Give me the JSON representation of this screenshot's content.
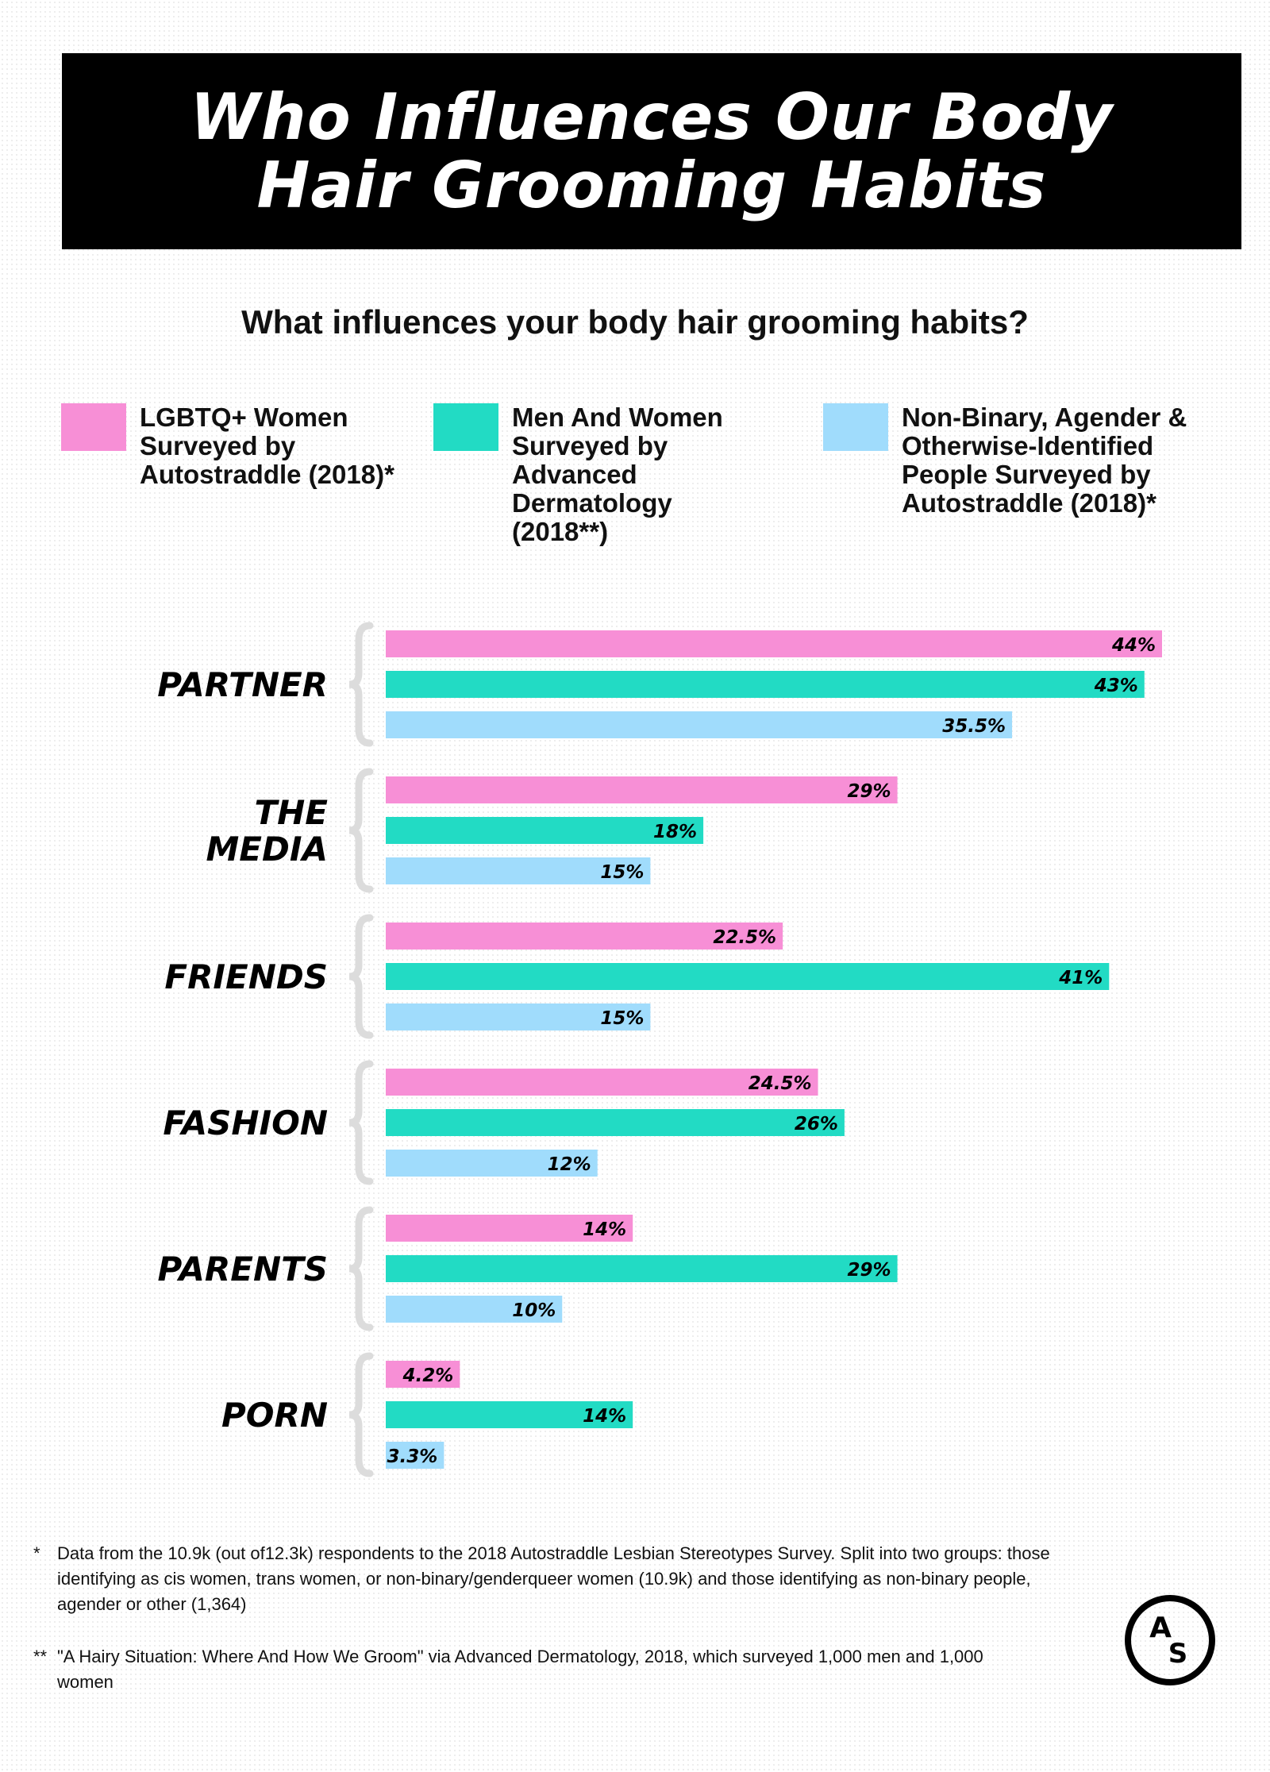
{
  "title": "Who Influences Our Body Hair Grooming Habits",
  "subtitle": "What influences your body hair grooming habits?",
  "legend": [
    {
      "label": "LGBTQ+ Women Surveyed by Autostraddle (2018)*",
      "color": "#f78fd6"
    },
    {
      "label": "Men And Women Surveyed by Advanced Dermatology (2018**)",
      "color": "#22dbc4"
    },
    {
      "label": "Non-Binary, Agender & Otherwise-Identified People Surveyed by Autostraddle (2018)*",
      "color": "#a0dcfc"
    }
  ],
  "chart_data": {
    "type": "bar",
    "orientation": "horizontal",
    "categories": [
      "PARTNER",
      "THE MEDIA",
      "FRIENDS",
      "FASHION",
      "PARENTS",
      "PORN"
    ],
    "series": [
      {
        "name": "LGBTQ+ Women Surveyed by Autostraddle (2018)*",
        "values": [
          44,
          29,
          22.5,
          24.5,
          14,
          4.2
        ],
        "labels": [
          "44%",
          "29%",
          "22.5%",
          "24.5%",
          "14%",
          "4.2%"
        ],
        "color": "#f78fd6"
      },
      {
        "name": "Men And Women Surveyed by Advanced Dermatology (2018**)",
        "values": [
          43,
          18,
          41,
          26,
          29,
          14
        ],
        "labels": [
          "43%",
          "18%",
          "41%",
          "26%",
          "29%",
          "14%"
        ],
        "color": "#22dbc4"
      },
      {
        "name": "Non-Binary, Agender & Otherwise-Identified People Surveyed by Autostraddle (2018)*",
        "values": [
          35.5,
          15,
          15,
          12,
          10,
          3.3
        ],
        "labels": [
          "35.5%",
          "15%",
          "15%",
          "12%",
          "10%",
          "3.3%"
        ],
        "color": "#a0dcfc"
      }
    ],
    "xlim": [
      0,
      45
    ],
    "grid": false
  },
  "footnotes": [
    {
      "mark": "*",
      "text": "Data from the 10.9k (out of12.3k) respondents to the 2018 Autostraddle Lesbian Stereotypes Survey. Split into two groups: those identifying as cis women, trans women, or non-binary/genderqueer women (10.9k) and those identifying as non-binary people, agender or other (1,364)"
    },
    {
      "mark": "**",
      "text": "\"A Hairy Situation: Where And How We Groom\" via Advanced Dermatology, 2018, which surveyed 1,000 men and 1,000 women"
    }
  ],
  "logo": {
    "letter_top": "A",
    "letter_bottom": "S"
  }
}
